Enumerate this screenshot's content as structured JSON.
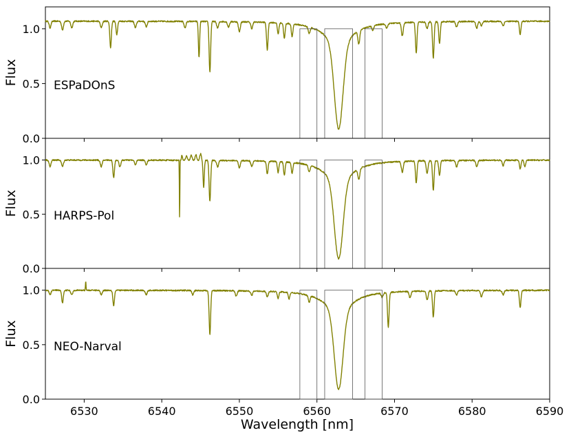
{
  "chart_data": {
    "type": "line",
    "xlabel": "Wavelength [nm]",
    "ylabel": "Flux",
    "xlim": [
      6525,
      6590
    ],
    "ylim": [
      0.0,
      1.2
    ],
    "x_ticks": [
      6530,
      6540,
      6550,
      6560,
      6570,
      6580,
      6590
    ],
    "y_ticks": [
      0.0,
      0.5,
      1.0
    ],
    "y_tick_labels": [
      "0.0",
      "0.5",
      "1.0"
    ],
    "line_color": "#808000",
    "window_color": "#555555",
    "windows": [
      {
        "x0": 6557.8,
        "x1": 6560.0,
        "height": 1.0
      },
      {
        "x0": 6561.0,
        "x1": 6564.6,
        "height": 1.0
      },
      {
        "x0": 6566.2,
        "x1": 6568.4,
        "height": 1.0
      }
    ],
    "panels": [
      {
        "label": "ESPaDOnS",
        "continuum": 1.07,
        "core_depth": 0.77,
        "lines": [
          [
            6525.6,
            0.06,
            0.12
          ],
          [
            6527.2,
            0.08,
            0.12
          ],
          [
            6528.4,
            0.06,
            0.12
          ],
          [
            6532.2,
            0.06,
            0.12
          ],
          [
            6533.4,
            0.24,
            0.1
          ],
          [
            6534.2,
            0.12,
            0.1
          ],
          [
            6536.6,
            0.06,
            0.12
          ],
          [
            6538.0,
            0.05,
            0.12
          ],
          [
            6543.0,
            0.06,
            0.12
          ],
          [
            6544.8,
            0.33,
            0.08
          ],
          [
            6546.2,
            0.46,
            0.1
          ],
          [
            6547.2,
            0.06,
            0.12
          ],
          [
            6548.6,
            0.05,
            0.12
          ],
          [
            6550.0,
            0.09,
            0.12
          ],
          [
            6551.6,
            0.06,
            0.12
          ],
          [
            6553.6,
            0.25,
            0.1
          ],
          [
            6555.0,
            0.1,
            0.1
          ],
          [
            6555.8,
            0.14,
            0.1
          ],
          [
            6556.8,
            0.12,
            0.1
          ],
          [
            6559.0,
            0.06,
            0.12
          ],
          [
            6565.4,
            0.12,
            0.12
          ],
          [
            6567.2,
            0.04,
            0.12
          ],
          [
            6569.0,
            0.04,
            0.12
          ],
          [
            6571.0,
            0.12,
            0.12
          ],
          [
            6572.8,
            0.28,
            0.1
          ],
          [
            6574.2,
            0.06,
            0.12
          ],
          [
            6575.0,
            0.33,
            0.1
          ],
          [
            6575.8,
            0.2,
            0.1
          ],
          [
            6578.0,
            0.05,
            0.12
          ],
          [
            6580.6,
            0.06,
            0.12
          ],
          [
            6581.2,
            0.04,
            0.12
          ],
          [
            6584.0,
            0.04,
            0.12
          ],
          [
            6586.2,
            0.12,
            0.1
          ]
        ],
        "spikes": []
      },
      {
        "label": "HARPS-Pol",
        "continuum": 1.0,
        "core_depth": 0.71,
        "lines": [
          [
            6525.6,
            0.06,
            0.12
          ],
          [
            6527.2,
            0.06,
            0.12
          ],
          [
            6532.2,
            0.06,
            0.12
          ],
          [
            6533.8,
            0.16,
            0.1
          ],
          [
            6534.6,
            0.06,
            0.12
          ],
          [
            6536.6,
            0.04,
            0.12
          ],
          [
            6538.0,
            0.04,
            0.12
          ],
          [
            6542.3,
            0.55,
            0.03
          ],
          [
            6545.4,
            0.25,
            0.08
          ],
          [
            6546.2,
            0.38,
            0.1
          ],
          [
            6547.2,
            0.06,
            0.12
          ],
          [
            6550.0,
            0.07,
            0.12
          ],
          [
            6551.6,
            0.05,
            0.12
          ],
          [
            6553.6,
            0.12,
            0.1
          ],
          [
            6555.0,
            0.1,
            0.1
          ],
          [
            6555.8,
            0.12,
            0.1
          ],
          [
            6556.8,
            0.1,
            0.1
          ],
          [
            6559.0,
            0.06,
            0.12
          ],
          [
            6565.4,
            0.1,
            0.12
          ],
          [
            6571.0,
            0.1,
            0.12
          ],
          [
            6572.8,
            0.2,
            0.1
          ],
          [
            6574.2,
            0.12,
            0.12
          ],
          [
            6575.0,
            0.27,
            0.1
          ],
          [
            6575.8,
            0.14,
            0.1
          ],
          [
            6578.0,
            0.06,
            0.12
          ],
          [
            6580.6,
            0.06,
            0.12
          ],
          [
            6584.0,
            0.05,
            0.12
          ],
          [
            6586.2,
            0.08,
            0.1
          ],
          [
            6586.8,
            0.06,
            0.1
          ]
        ],
        "spikes": [
          [
            6542.6,
            0.05,
            0.06
          ],
          [
            6543.2,
            0.04,
            0.1
          ],
          [
            6543.8,
            0.05,
            0.1
          ],
          [
            6544.4,
            0.05,
            0.1
          ],
          [
            6545.0,
            0.06,
            0.1
          ]
        ]
      },
      {
        "label": "NEO-Narval",
        "continuum": 1.0,
        "core_depth": 0.71,
        "lines": [
          [
            6525.6,
            0.04,
            0.12
          ],
          [
            6527.2,
            0.12,
            0.1
          ],
          [
            6528.4,
            0.04,
            0.12
          ],
          [
            6532.2,
            0.04,
            0.12
          ],
          [
            6533.8,
            0.14,
            0.1
          ],
          [
            6538.0,
            0.04,
            0.12
          ],
          [
            6544.0,
            0.04,
            0.12
          ],
          [
            6546.2,
            0.4,
            0.1
          ],
          [
            6549.6,
            0.05,
            0.12
          ],
          [
            6551.6,
            0.04,
            0.12
          ],
          [
            6553.6,
            0.05,
            0.12
          ],
          [
            6555.0,
            0.06,
            0.1
          ],
          [
            6556.4,
            0.06,
            0.1
          ],
          [
            6559.0,
            0.06,
            0.12
          ],
          [
            6568.4,
            0.04,
            0.12
          ],
          [
            6569.2,
            0.32,
            0.1
          ],
          [
            6572.0,
            0.06,
            0.12
          ],
          [
            6574.2,
            0.08,
            0.12
          ],
          [
            6575.0,
            0.24,
            0.1
          ],
          [
            6578.0,
            0.04,
            0.12
          ],
          [
            6581.2,
            0.06,
            0.12
          ],
          [
            6584.0,
            0.04,
            0.12
          ],
          [
            6586.2,
            0.16,
            0.1
          ]
        ],
        "spikes": [
          [
            6530.2,
            0.08,
            0.04
          ]
        ]
      }
    ]
  }
}
